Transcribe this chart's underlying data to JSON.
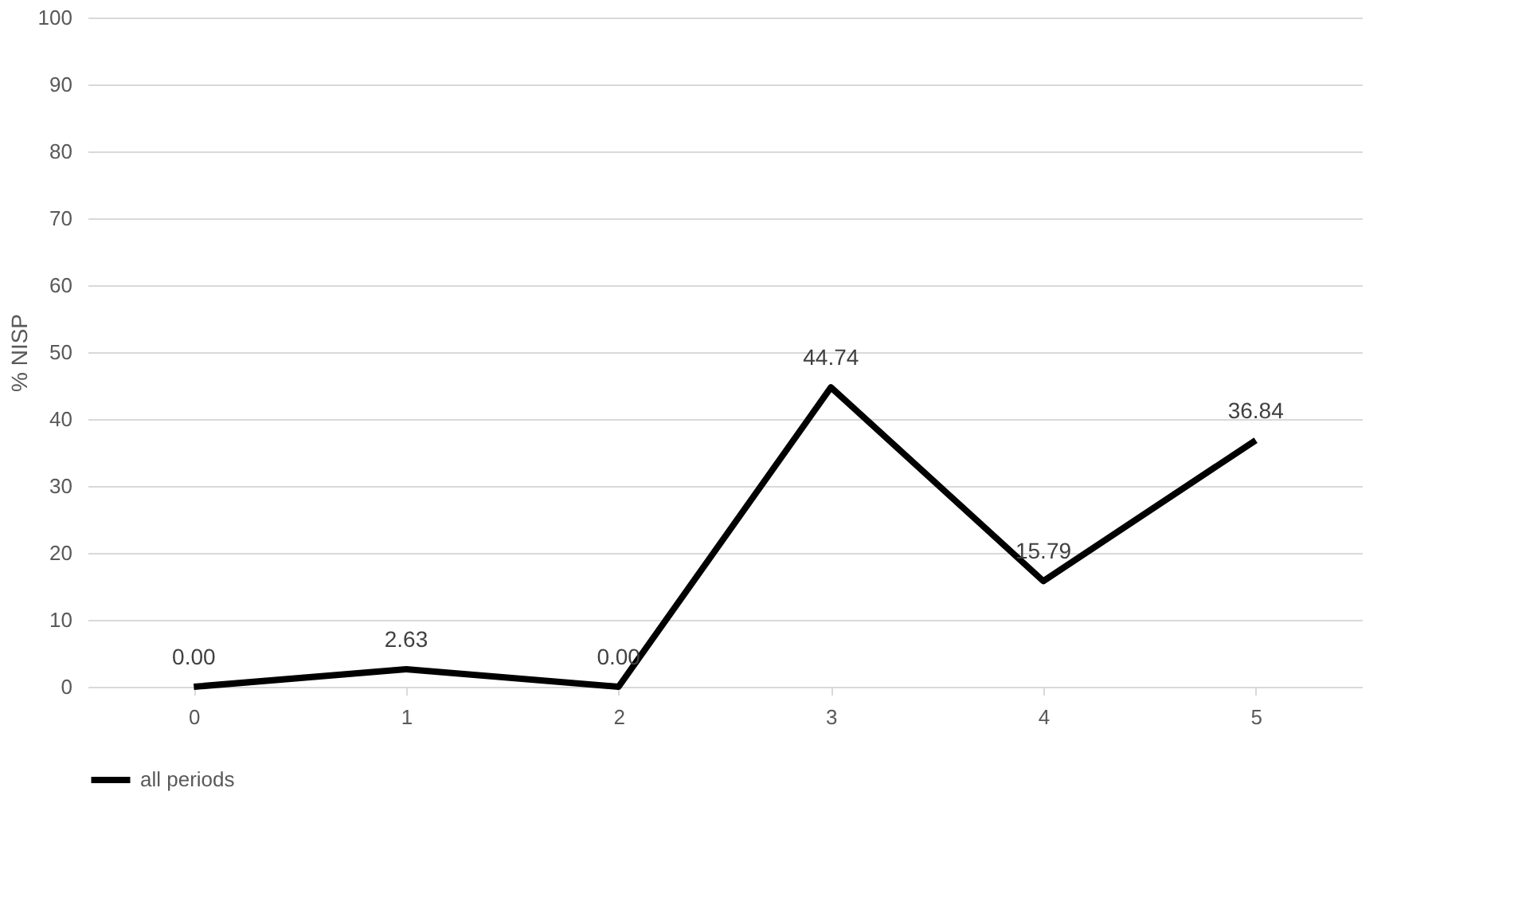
{
  "chart_data": {
    "type": "line",
    "ylabel": "% NISP",
    "categories": [
      "0",
      "1",
      "2",
      "3",
      "4",
      "5"
    ],
    "series": [
      {
        "name": "all periods",
        "color": "#000000",
        "values": [
          0.0,
          2.63,
          0.0,
          44.74,
          15.79,
          36.84
        ],
        "value_labels": [
          "0.00",
          "2.63",
          "0.00",
          "44.74",
          "15.79",
          "36.84"
        ]
      }
    ],
    "ylim": [
      0,
      100
    ],
    "yticks": [
      0,
      10,
      20,
      30,
      40,
      50,
      60,
      70,
      80,
      90,
      100
    ],
    "grid": "y",
    "legend": "bottom",
    "marker": "none",
    "line_style": "solid"
  }
}
